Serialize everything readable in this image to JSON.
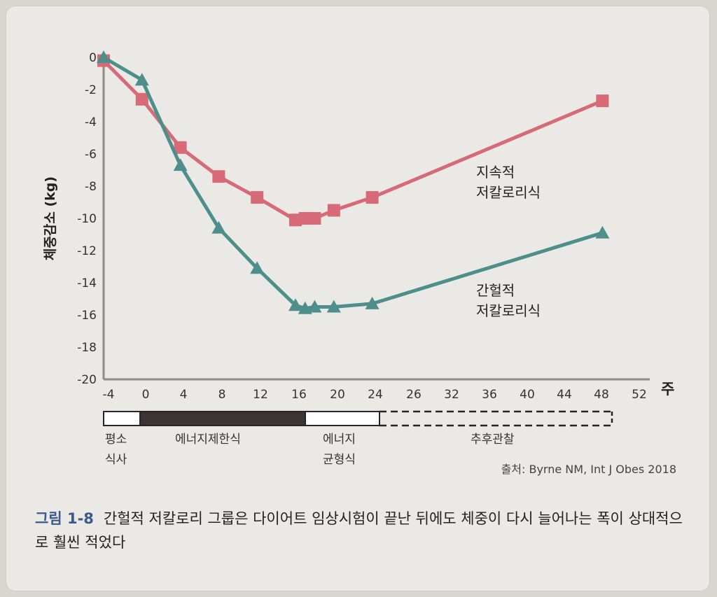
{
  "chart_data": {
    "type": "line",
    "ylabel": "체중감소 (kg)",
    "xlabel": "주",
    "ylim": [
      -20,
      0
    ],
    "yticks": [
      0,
      -2,
      -4,
      -6,
      -8,
      -10,
      -12,
      -14,
      -16,
      -18,
      -20
    ],
    "xtick_labels": [
      "-4",
      "0",
      "4",
      "8",
      "12",
      "16",
      "20",
      "24",
      "26",
      "32",
      "36",
      "40",
      "44",
      "48",
      "52"
    ],
    "grid": false,
    "series": [
      {
        "name": "지속적 저칼로리식",
        "color": "#d66a76",
        "marker": "square",
        "x": [
          -4,
          0,
          4,
          8,
          12,
          16,
          17,
          18,
          20,
          24,
          48
        ],
        "y": [
          -0.2,
          -2.6,
          -5.6,
          -7.4,
          -8.7,
          -10.1,
          -10.0,
          -10.0,
          -9.5,
          -8.7,
          -2.7
        ]
      },
      {
        "name": "간헐적 저칼로리식",
        "color": "#4e8f8b",
        "marker": "triangle",
        "x": [
          -4,
          0,
          4,
          8,
          12,
          16,
          17,
          18,
          20,
          24,
          48
        ],
        "y": [
          0,
          -1.4,
          -6.7,
          -10.6,
          -13.1,
          -15.4,
          -15.6,
          -15.5,
          -15.5,
          -15.3,
          -10.9
        ]
      }
    ],
    "series_labels": [
      {
        "line1": "지속적",
        "line2": "저칼로리식"
      },
      {
        "line1": "간헐적",
        "line2": "저칼로리식"
      }
    ],
    "phases": [
      {
        "label1": "평소",
        "label2": "식사",
        "fill": "white"
      },
      {
        "label1": "에너지제한식",
        "label2": "",
        "fill": "#3a3433"
      },
      {
        "label1": "에너지",
        "label2": "균형식",
        "fill": "white"
      },
      {
        "label1": "추후관찰",
        "label2": "",
        "fill": "dashed"
      }
    ],
    "source": "출처: Byrne NM, Int J Obes 2018"
  },
  "caption": {
    "figure_no": "그림 1-8",
    "text": "간헐적 저칼로리 그룹은 다이어트 임상시험이 끝난 뒤에도 체중이 다시 늘어나는 폭이 상대적으로 훨씬 적었다"
  }
}
